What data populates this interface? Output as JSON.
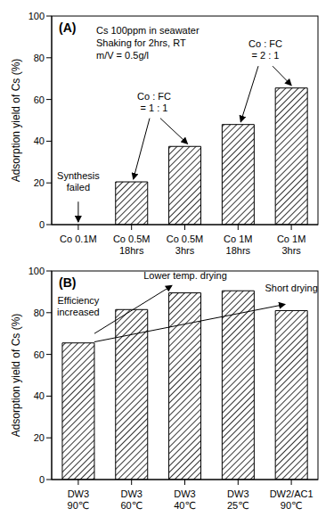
{
  "chart_data": [
    {
      "type": "bar",
      "title": "(A)",
      "categories": [
        "Co 0.1M",
        "Co 0.5M\n18hrs",
        "Co 0.5M\n3hrs",
        "Co 1M\n18hrs",
        "Co 1M\n3hrs"
      ],
      "values": [
        0,
        20.5,
        37.5,
        48,
        65.5
      ],
      "color": "#333333",
      "ylabel": "Adsorption yield of Cs (%)",
      "ylim": [
        0,
        100
      ],
      "yticks": [
        0,
        20,
        40,
        60,
        80,
        100
      ],
      "grid": false,
      "annotations": [
        "Cs 100ppm in seawater",
        "Shaking for 2hrs, RT",
        "m/V = 0.5g/l",
        "Synthesis\nfailed",
        "Co : FC\n= 1 : 1",
        "Co : FC\n= 2 : 1"
      ]
    },
    {
      "type": "bar",
      "title": "(B)",
      "categories": [
        "DW3\n90℃",
        "DW3\n60℃",
        "DW3\n40℃",
        "DW3\n25℃",
        "DW2/AC1\n90℃"
      ],
      "values": [
        65.5,
        81.5,
        89.5,
        90.5,
        81
      ],
      "color": "#333333",
      "ylabel": "Adsorption yield of Cs (%)",
      "ylim": [
        0,
        100
      ],
      "yticks": [
        0,
        20,
        40,
        60,
        80,
        100
      ],
      "grid": false,
      "annotations": [
        "Efficiency\nincreased",
        "Lower temp. drying",
        "Short drying"
      ]
    }
  ]
}
